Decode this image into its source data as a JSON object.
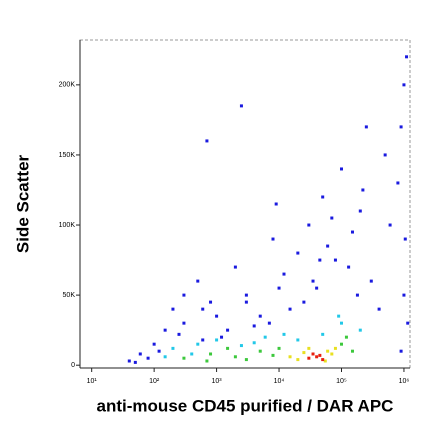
{
  "chart_data": {
    "type": "scatter",
    "xlabel": "anti-mouse CD45 purified / DAR APC",
    "ylabel": "Side Scatter",
    "xscale": "log",
    "xlim": [
      6.5,
      1250000
    ],
    "ylim": [
      -2000,
      232000
    ],
    "xticks": [
      {
        "value": 10,
        "label": "10¹"
      },
      {
        "value": 100,
        "label": "10²"
      },
      {
        "value": 1000,
        "label": "10³"
      },
      {
        "value": 10000,
        "label": "10⁴"
      },
      {
        "value": 100000,
        "label": "10⁵"
      },
      {
        "value": 1000000,
        "label": "10⁶"
      }
    ],
    "yticks": [
      0,
      {
        "value": 50000,
        "label": "50K"
      },
      {
        "value": 100000,
        "label": "100K"
      },
      {
        "value": 150000,
        "label": "150K"
      },
      {
        "value": 200000,
        "label": "200K"
      }
    ],
    "series": [
      {
        "color": "#1a1adf",
        "x": [
          40,
          60,
          100,
          150,
          200,
          300,
          500,
          800,
          1200,
          2000,
          3000,
          5000,
          8000,
          12000,
          20000,
          30000,
          50000,
          80000,
          100000,
          150000,
          200000,
          300000,
          500000,
          800000,
          1000000,
          1100000,
          1050000,
          400000,
          250000,
          180000,
          60000,
          40000,
          25000,
          15000,
          7000,
          4000,
          1500,
          600,
          250,
          120,
          80,
          50,
          700,
          2500,
          9000,
          35000,
          70000,
          130000,
          900000,
          1000000,
          300,
          600,
          1000,
          3000,
          10000,
          45000,
          220000,
          600000,
          1150000,
          900000
        ],
        "values": [
          3000,
          8000,
          15000,
          25000,
          40000,
          30000,
          60000,
          45000,
          20000,
          70000,
          50000,
          35000,
          90000,
          65000,
          80000,
          100000,
          120000,
          75000,
          140000,
          95000,
          110000,
          60000,
          150000,
          130000,
          200000,
          220000,
          90000,
          40000,
          170000,
          50000,
          85000,
          55000,
          45000,
          40000,
          30000,
          28000,
          25000,
          18000,
          22000,
          10000,
          5000,
          2000,
          160000,
          185000,
          115000,
          60000,
          105000,
          70000,
          170000,
          50000,
          50000,
          40000,
          35000,
          45000,
          55000,
          75000,
          125000,
          100000,
          30000,
          10000
        ]
      },
      {
        "color": "#22c8e8",
        "x": [
          200,
          500,
          1000,
          2500,
          6000,
          12000,
          100000,
          200000,
          400,
          4000,
          20000,
          50000,
          90000,
          150
        ],
        "values": [
          12000,
          15000,
          18000,
          14000,
          20000,
          22000,
          30000,
          25000,
          8000,
          16000,
          18000,
          22000,
          35000,
          6000
        ]
      },
      {
        "color": "#3cc83c",
        "x": [
          300,
          800,
          2000,
          5000,
          10000,
          100000,
          120000,
          700,
          3000,
          8000,
          150000,
          1500
        ],
        "values": [
          5000,
          8000,
          6000,
          10000,
          12000,
          15000,
          20000,
          3000,
          4000,
          7000,
          10000,
          12000
        ]
      },
      {
        "color": "#e8e020",
        "x": [
          15000,
          25000,
          60000,
          70000,
          20000,
          80000,
          30000,
          55000
        ],
        "values": [
          6000,
          9000,
          10000,
          8000,
          4000,
          12000,
          12000,
          3000
        ]
      },
      {
        "color": "#e82010",
        "x": [
          30000,
          40000,
          50000,
          35000,
          45000
        ],
        "values": [
          5000,
          6000,
          4000,
          8000,
          7000
        ]
      }
    ]
  }
}
